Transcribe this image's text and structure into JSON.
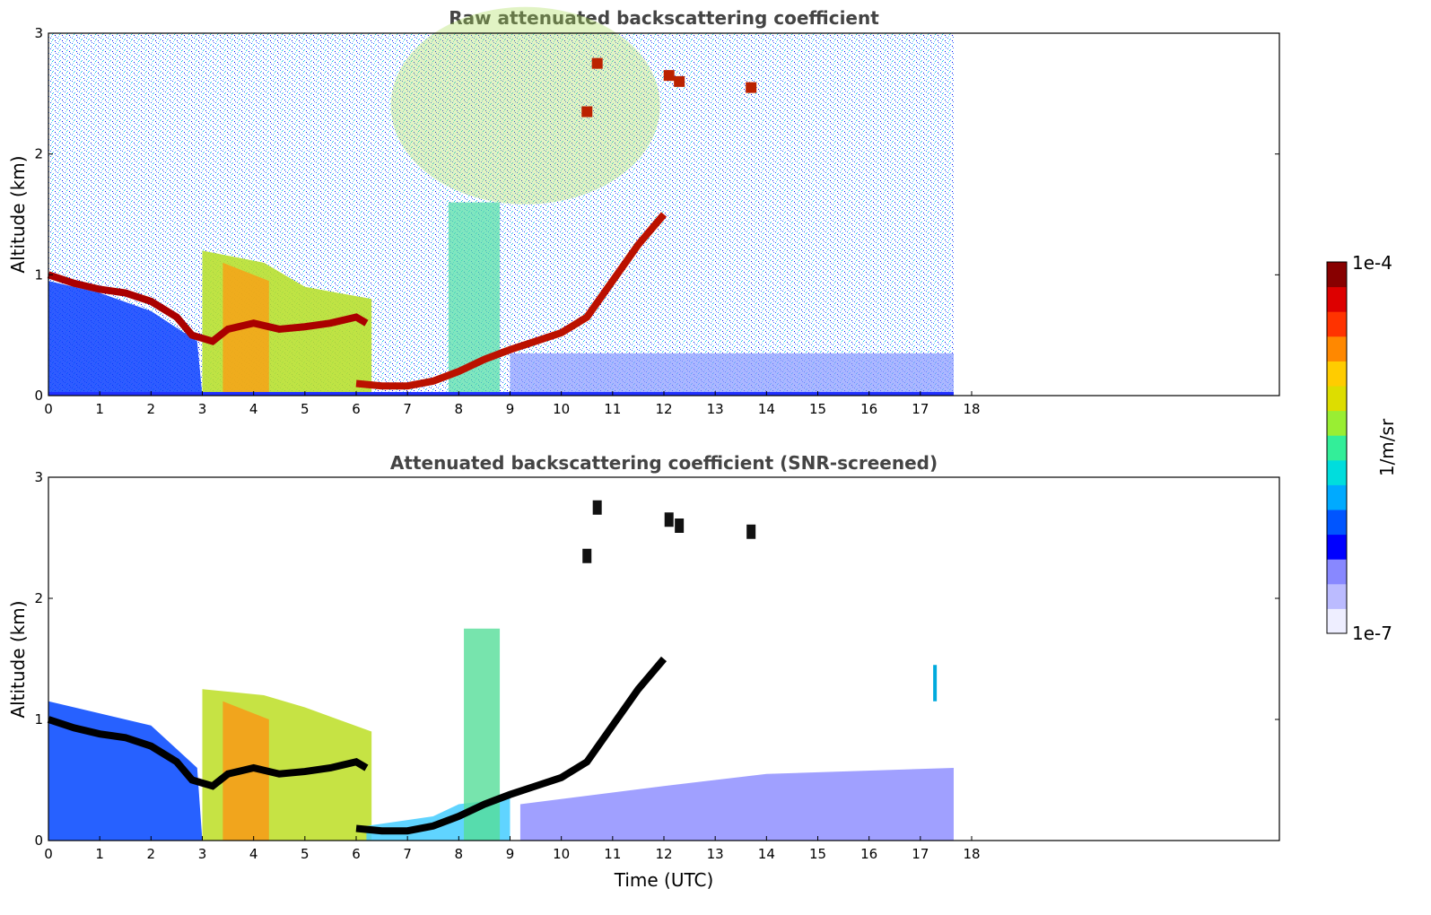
{
  "chart_data": [
    {
      "type": "heatmap",
      "title": "Raw attenuated backscattering coefficient",
      "xlabel": "",
      "ylabel": "Altitude (km)",
      "xlim": [
        0,
        24
      ],
      "ylim": [
        0,
        3
      ],
      "x_ticks": [
        0,
        1,
        2,
        3,
        4,
        5,
        6,
        7,
        8,
        9,
        10,
        11,
        12,
        13,
        14,
        15,
        16,
        17,
        18
      ],
      "y_ticks": [
        0,
        1,
        2,
        3
      ],
      "data_end_x": 17.65,
      "grid": false,
      "features": {
        "cloud_layer_x": [
          0,
          0.5,
          1,
          1.5,
          2,
          2.5,
          2.8,
          3.2,
          3.5,
          4,
          4.5,
          5,
          5.5,
          6,
          6.2
        ],
        "cloud_layer_y": [
          1.0,
          0.93,
          0.88,
          0.85,
          0.78,
          0.65,
          0.5,
          0.45,
          0.55,
          0.6,
          0.55,
          0.57,
          0.6,
          0.65,
          0.6
        ],
        "low_layer_x": [
          6,
          6.5,
          7,
          7.5,
          8,
          8.5,
          9,
          9.5,
          10,
          10.5,
          11,
          11.5,
          12
        ],
        "low_layer_y": [
          0.1,
          0.08,
          0.08,
          0.12,
          0.2,
          0.3,
          0.38,
          0.45,
          0.52,
          0.65,
          0.95,
          1.25,
          1.5
        ],
        "thin_cloud_top_x": [
          10.5,
          10.7,
          12.1,
          12.3,
          13.7
        ],
        "thin_cloud_top_y": [
          2.35,
          2.75,
          2.65,
          2.6,
          2.55
        ]
      }
    },
    {
      "type": "heatmap",
      "title": "Attenuated backscattering coefficient (SNR-screened)",
      "xlabel": "Time (UTC)",
      "ylabel": "Altitude (km)",
      "xlim": [
        0,
        24
      ],
      "ylim": [
        0,
        3
      ],
      "x_ticks": [
        0,
        1,
        2,
        3,
        4,
        5,
        6,
        7,
        8,
        9,
        10,
        11,
        12,
        13,
        14,
        15,
        16,
        17,
        18
      ],
      "y_ticks": [
        0,
        1,
        2,
        3
      ],
      "data_end_x": 17.65,
      "grid": false
    }
  ],
  "colorbar": {
    "label": "1/m/sr",
    "max_label": "1e-4",
    "min_label": "1e-7",
    "scale": "log",
    "colormap": "jet",
    "colors": [
      "#eeeeff",
      "#bbbbff",
      "#8888ff",
      "#0000ff",
      "#0055ff",
      "#00aaff",
      "#00dddd",
      "#33ee99",
      "#99ee33",
      "#dddd00",
      "#ffcc00",
      "#ff8800",
      "#ff3300",
      "#dd0000",
      "#880000"
    ]
  }
}
